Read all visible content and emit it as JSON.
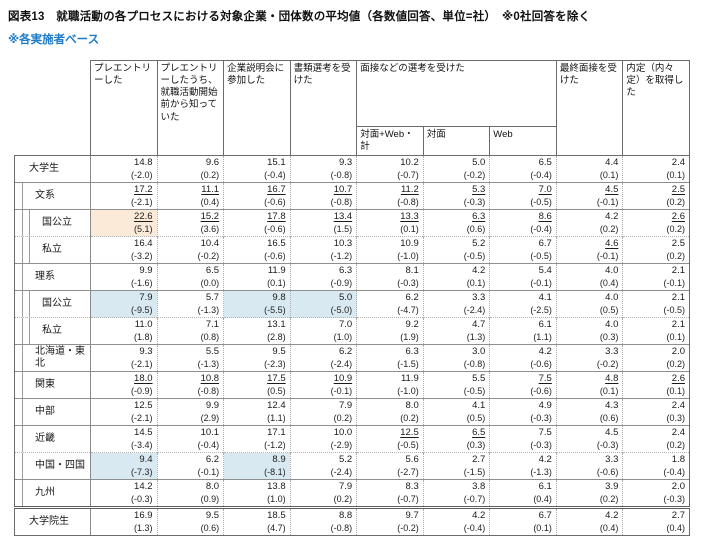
{
  "header": {
    "title": "図表13　就職活動の各プロセスにおける対象企業・団体数の平均値（各数値回答、単位=社）　※0社回答を除く",
    "subtitle": "※各実施者ベース"
  },
  "colors": {
    "subtitle_blue": "#1f7cc9",
    "highlight_orange": "#fcead9",
    "highlight_blue": "#d9e9f2",
    "underline_meaning": "segment-high value marker"
  },
  "table": {
    "unit_note": "単位=社",
    "headers": [
      {
        "label": "プレエントリーした"
      },
      {
        "label": "プレエントリーしたうち、就職活動開始前から知っていた"
      },
      {
        "label": "企業説明会に参加した"
      },
      {
        "label": "書類選考を受けた"
      },
      {
        "label": "面接などの選考を受けた",
        "children": [
          "対面+Web・計",
          "対面",
          "Web"
        ]
      },
      {
        "label": "最終面接を受けた"
      },
      {
        "label": "内定（内々定）を取得した"
      }
    ],
    "rows": [
      {
        "label": "大学生",
        "level": 0,
        "sep": "none",
        "cells": [
          {
            "v": "14.8",
            "d": "(-2.0)"
          },
          {
            "v": "9.6",
            "d": "(0.2)"
          },
          {
            "v": "15.1",
            "d": "(-0.4)"
          },
          {
            "v": "9.3",
            "d": "(-0.8)"
          },
          {
            "v": "10.2",
            "d": "(-0.7)"
          },
          {
            "v": "5.0",
            "d": "(-0.2)"
          },
          {
            "v": "6.5",
            "d": "(-0.4)"
          },
          {
            "v": "4.4",
            "d": "(0.1)"
          },
          {
            "v": "2.4",
            "d": "(0.1)"
          }
        ]
      },
      {
        "label": "文系",
        "level": 1,
        "sep": "solid",
        "cells": [
          {
            "v": "17.2",
            "d": "(-2.1)",
            "u": true
          },
          {
            "v": "11.1",
            "d": "(0.4)",
            "u": true
          },
          {
            "v": "16.7",
            "d": "(-0.6)",
            "u": true
          },
          {
            "v": "10.7",
            "d": "(-0.8)",
            "u": true
          },
          {
            "v": "11.2",
            "d": "(-0.8)",
            "u": true
          },
          {
            "v": "5.3",
            "d": "(-0.3)",
            "u": true
          },
          {
            "v": "7.0",
            "d": "(-0.5)",
            "u": true
          },
          {
            "v": "4.5",
            "d": "(-0.1)",
            "u": true
          },
          {
            "v": "2.5",
            "d": "(0.2)",
            "u": true
          }
        ]
      },
      {
        "label": "国公立",
        "level": 2,
        "sep": "solid",
        "cells": [
          {
            "v": "22.6",
            "d": "(5.1)",
            "u": true,
            "hl": "o"
          },
          {
            "v": "15.2",
            "d": "(3.6)",
            "u": true
          },
          {
            "v": "17.8",
            "d": "(-0.6)",
            "u": true
          },
          {
            "v": "13.4",
            "d": "(1.5)",
            "u": true
          },
          {
            "v": "13.3",
            "d": "(0.1)",
            "u": true
          },
          {
            "v": "6.3",
            "d": "(0.6)",
            "u": true
          },
          {
            "v": "8.6",
            "d": "(-0.4)",
            "u": true
          },
          {
            "v": "4.2",
            "d": "(0.2)"
          },
          {
            "v": "2.6",
            "d": "(0.2)",
            "u": true
          }
        ]
      },
      {
        "label": "私立",
        "level": 2,
        "sep": "dotted",
        "cells": [
          {
            "v": "16.4",
            "d": "(-3.2)"
          },
          {
            "v": "10.4",
            "d": "(-0.2)"
          },
          {
            "v": "16.5",
            "d": "(-0.6)"
          },
          {
            "v": "10.3",
            "d": "(-1.2)"
          },
          {
            "v": "10.9",
            "d": "(-1.0)"
          },
          {
            "v": "5.2",
            "d": "(-0.5)"
          },
          {
            "v": "6.7",
            "d": "(-0.5)"
          },
          {
            "v": "4.6",
            "d": "(-0.1)",
            "u": true
          },
          {
            "v": "2.5",
            "d": "(0.2)"
          }
        ]
      },
      {
        "label": "理系",
        "level": 1,
        "sep": "solid",
        "cells": [
          {
            "v": "9.9",
            "d": "(-1.6)"
          },
          {
            "v": "6.5",
            "d": "(0.0)"
          },
          {
            "v": "11.9",
            "d": "(0.1)"
          },
          {
            "v": "6.3",
            "d": "(-0.9)"
          },
          {
            "v": "8.1",
            "d": "(-0.3)"
          },
          {
            "v": "4.2",
            "d": "(0.1)"
          },
          {
            "v": "5.4",
            "d": "(-0.1)"
          },
          {
            "v": "4.0",
            "d": "(0.4)"
          },
          {
            "v": "2.1",
            "d": "(-0.1)"
          }
        ]
      },
      {
        "label": "国公立",
        "level": 2,
        "sep": "solid",
        "cells": [
          {
            "v": "7.9",
            "d": "(-9.5)",
            "hl": "b"
          },
          {
            "v": "5.7",
            "d": "(-1.3)"
          },
          {
            "v": "9.8",
            "d": "(-5.5)",
            "hl": "b"
          },
          {
            "v": "5.0",
            "d": "(-5.0)",
            "hl": "b"
          },
          {
            "v": "6.2",
            "d": "(-4.7)"
          },
          {
            "v": "3.3",
            "d": "(-2.4)"
          },
          {
            "v": "4.1",
            "d": "(-2.5)"
          },
          {
            "v": "4.0",
            "d": "(0.5)"
          },
          {
            "v": "2.1",
            "d": "(-0.5)"
          }
        ]
      },
      {
        "label": "私立",
        "level": 2,
        "sep": "dotted",
        "cells": [
          {
            "v": "11.0",
            "d": "(1.8)"
          },
          {
            "v": "7.1",
            "d": "(0.8)"
          },
          {
            "v": "13.1",
            "d": "(2.8)"
          },
          {
            "v": "7.0",
            "d": "(1.0)"
          },
          {
            "v": "9.2",
            "d": "(1.9)"
          },
          {
            "v": "4.7",
            "d": "(1.3)"
          },
          {
            "v": "6.1",
            "d": "(1.1)"
          },
          {
            "v": "4.0",
            "d": "(0.3)"
          },
          {
            "v": "2.1",
            "d": "(0.1)"
          }
        ]
      },
      {
        "label": "北海道・東北",
        "level": 1,
        "sep": "solid",
        "cells": [
          {
            "v": "9.3",
            "d": "(-2.1)"
          },
          {
            "v": "5.5",
            "d": "(-1.3)"
          },
          {
            "v": "9.5",
            "d": "(-2.3)"
          },
          {
            "v": "6.2",
            "d": "(-2.4)"
          },
          {
            "v": "6.3",
            "d": "(-1.5)"
          },
          {
            "v": "3.0",
            "d": "(-0.8)"
          },
          {
            "v": "4.2",
            "d": "(-0.6)"
          },
          {
            "v": "3.3",
            "d": "(-0.2)"
          },
          {
            "v": "2.0",
            "d": "(0.2)"
          }
        ]
      },
      {
        "label": "関東",
        "level": 1,
        "sep": "solid",
        "cells": [
          {
            "v": "18.0",
            "d": "(-0.9)",
            "u": true
          },
          {
            "v": "10.8",
            "d": "(-0.8)",
            "u": true
          },
          {
            "v": "17.5",
            "d": "(0.5)",
            "u": true
          },
          {
            "v": "10.9",
            "d": "(-0.1)",
            "u": true
          },
          {
            "v": "11.9",
            "d": "(-1.0)"
          },
          {
            "v": "5.5",
            "d": "(-0.5)"
          },
          {
            "v": "7.5",
            "d": "(-0.6)",
            "u": true
          },
          {
            "v": "4.8",
            "d": "(0.1)",
            "u": true
          },
          {
            "v": "2.6",
            "d": "(0.1)",
            "u": true
          }
        ]
      },
      {
        "label": "中部",
        "level": 1,
        "sep": "solid",
        "cells": [
          {
            "v": "12.5",
            "d": "(-2.1)"
          },
          {
            "v": "9.9",
            "d": "(2.9)"
          },
          {
            "v": "12.4",
            "d": "(1.1)"
          },
          {
            "v": "7.9",
            "d": "(0.2)"
          },
          {
            "v": "8.0",
            "d": "(0.2)"
          },
          {
            "v": "4.1",
            "d": "(0.5)"
          },
          {
            "v": "4.9",
            "d": "(-0.3)"
          },
          {
            "v": "4.3",
            "d": "(0.6)"
          },
          {
            "v": "2.4",
            "d": "(0.3)"
          }
        ]
      },
      {
        "label": "近畿",
        "level": 1,
        "sep": "solid",
        "cells": [
          {
            "v": "14.5",
            "d": "(-3.4)"
          },
          {
            "v": "10.1",
            "d": "(-0.4)"
          },
          {
            "v": "17.1",
            "d": "(-1.2)"
          },
          {
            "v": "10.0",
            "d": "(-2.9)"
          },
          {
            "v": "12.5",
            "d": "(-0.5)",
            "u": true
          },
          {
            "v": "6.5",
            "d": "(0.3)",
            "u": true
          },
          {
            "v": "7.5",
            "d": "(-0.3)"
          },
          {
            "v": "4.5",
            "d": "(-0.3)"
          },
          {
            "v": "2.4",
            "d": "(0.2)"
          }
        ]
      },
      {
        "label": "中国・四国",
        "level": 1,
        "sep": "dotted",
        "cells": [
          {
            "v": "9.4",
            "d": "(-7.3)",
            "hl": "b"
          },
          {
            "v": "6.2",
            "d": "(-0.1)"
          },
          {
            "v": "8.9",
            "d": "(-8.1)",
            "hl": "b"
          },
          {
            "v": "5.2",
            "d": "(-2.4)"
          },
          {
            "v": "5.6",
            "d": "(-2.7)"
          },
          {
            "v": "2.7",
            "d": "(-1.5)"
          },
          {
            "v": "4.2",
            "d": "(-1.3)"
          },
          {
            "v": "3.3",
            "d": "(-0.6)"
          },
          {
            "v": "1.8",
            "d": "(-0.4)"
          }
        ]
      },
      {
        "label": "九州",
        "level": 1,
        "sep": "solid",
        "cells": [
          {
            "v": "14.2",
            "d": "(-0.3)"
          },
          {
            "v": "8.0",
            "d": "(0.9)"
          },
          {
            "v": "13.8",
            "d": "(1.0)"
          },
          {
            "v": "7.9",
            "d": "(0.2)"
          },
          {
            "v": "8.3",
            "d": "(-0.7)"
          },
          {
            "v": "3.8",
            "d": "(-0.7)"
          },
          {
            "v": "6.1",
            "d": "(0.4)"
          },
          {
            "v": "3.9",
            "d": "(0.2)"
          },
          {
            "v": "2.0",
            "d": "(-0.3)"
          }
        ]
      },
      {
        "label": "大学院生",
        "level": 0,
        "sep": "thick",
        "cells": [
          {
            "v": "16.9",
            "d": "(1.3)"
          },
          {
            "v": "9.5",
            "d": "(0.6)"
          },
          {
            "v": "18.5",
            "d": "(4.7)"
          },
          {
            "v": "8.8",
            "d": "(-0.8)"
          },
          {
            "v": "9.7",
            "d": "(-0.2)"
          },
          {
            "v": "4.2",
            "d": "(-0.4)"
          },
          {
            "v": "6.7",
            "d": "(0.1)"
          },
          {
            "v": "4.2",
            "d": "(0.4)"
          },
          {
            "v": "2.7",
            "d": "(0.4)"
          }
        ]
      }
    ]
  }
}
